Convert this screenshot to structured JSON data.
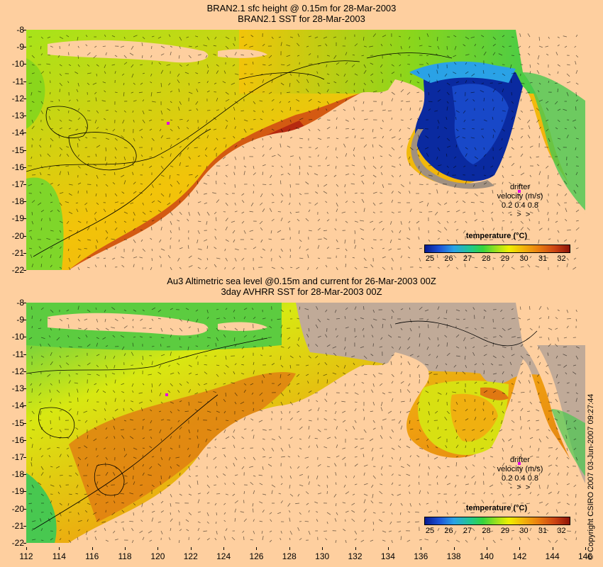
{
  "top_panel": {
    "title_line1": "BRAN2.1 sfc height @ 0.15m for 28-Mar-2003",
    "title_line2": "BRAN2.1 SST for 28-Mar-2003"
  },
  "bottom_panel": {
    "title_line1": "Au3 Altimetric sea level  @0.15m and current for 26-Mar-2003 00Z",
    "title_line2": "3day AVHRR SST for 28-Mar-2003 00Z"
  },
  "latitude_ticks": [
    "-8",
    "-9",
    "-10",
    "-11",
    "-12",
    "-13",
    "-14",
    "-15",
    "-16",
    "-17",
    "-18",
    "-19",
    "-20",
    "-21",
    "-22"
  ],
  "longitude_ticks": [
    "112",
    "114",
    "116",
    "118",
    "120",
    "122",
    "124",
    "126",
    "128",
    "130",
    "132",
    "134",
    "136",
    "138",
    "140",
    "142",
    "144",
    "146"
  ],
  "colorbar": {
    "title": "temperature (°C)",
    "labels": [
      "25",
      "26",
      "27",
      "28",
      "29",
      "30",
      "31",
      "32"
    ],
    "colors": [
      "#081a8f",
      "#1c52d6",
      "#2aa2e6",
      "#22c98a",
      "#36d43c",
      "#a2e21a",
      "#eef000",
      "#f2b40a",
      "#ea8010",
      "#cc4212",
      "#8e1408"
    ]
  },
  "drifter_legend": {
    "line1": "drifter",
    "line2": "velocity (m/s)",
    "scale": "0.2 0.4 0.8"
  },
  "copyright": "© Copyright CSIRO 2007   03-Jun-2007 09:27:44",
  "colors": {
    "land": "#fecf9f",
    "no_data": "#c0aa98",
    "arrow": "#000000"
  }
}
